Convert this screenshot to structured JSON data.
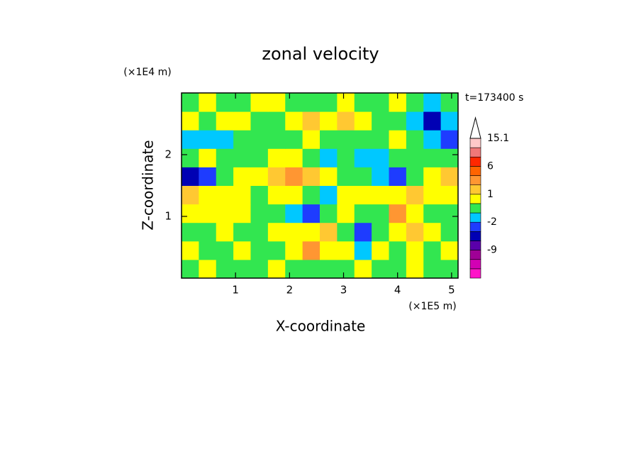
{
  "chart_data": {
    "type": "contour",
    "title": "zonal velocity",
    "xlabel": "X-coordinate",
    "ylabel": "Z-coordinate",
    "xunit": "(×1E5 m)",
    "yunit": "(×1E4 m)",
    "time_label": "t=173400 s",
    "xlim": [
      0,
      5.12
    ],
    "ylim": [
      0,
      3
    ],
    "xticks": [
      1,
      2,
      3,
      4,
      5
    ],
    "yticks": [
      1,
      2
    ],
    "x": [
      0.16,
      0.48,
      0.8,
      1.12,
      1.44,
      1.76,
      2.08,
      2.4,
      2.72,
      3.04,
      3.36,
      3.68,
      4.0,
      4.32,
      4.64,
      4.96
    ],
    "y": [
      0.15,
      0.45,
      0.75,
      1.05,
      1.35,
      1.65,
      1.95,
      2.25,
      2.55,
      2.85
    ],
    "values": [
      [
        -0.5,
        0.5,
        -0.5,
        -0.5,
        -0.5,
        0.5,
        -0.5,
        -0.5,
        -0.5,
        -0.5,
        0.5,
        -0.5,
        -0.5,
        0.5,
        -0.5,
        -0.5
      ],
      [
        0.5,
        -0.5,
        -0.5,
        0.5,
        -0.5,
        -0.5,
        0.5,
        3,
        0.5,
        0.5,
        -1.5,
        0.5,
        -0.5,
        0.5,
        -0.5,
        0.5
      ],
      [
        -0.5,
        -0.5,
        0.5,
        -0.5,
        -0.5,
        0.5,
        0.5,
        0.5,
        1.5,
        -0.5,
        -3,
        -0.5,
        0.5,
        1.5,
        0.5,
        -0.5
      ],
      [
        0.5,
        0.5,
        0.5,
        0.5,
        -0.5,
        -0.5,
        -1.5,
        -3,
        -0.5,
        0.5,
        -0.5,
        -0.5,
        3,
        0.5,
        -0.5,
        -0.5
      ],
      [
        1.5,
        0.5,
        0.5,
        0.5,
        -0.5,
        0.5,
        0.5,
        -0.5,
        -1.5,
        0.5,
        0.5,
        0.5,
        0.5,
        1.5,
        0.5,
        0.5
      ],
      [
        -5,
        -3,
        -0.5,
        0.5,
        0.5,
        1.5,
        3,
        1.5,
        0.5,
        -0.5,
        -0.5,
        -1.5,
        -3,
        -0.5,
        0.5,
        1.5
      ],
      [
        -0.5,
        0.5,
        -0.5,
        -0.5,
        -0.5,
        0.5,
        0.5,
        -0.5,
        -1.5,
        -0.5,
        -1.5,
        -1.5,
        -0.5,
        -0.5,
        -0.5,
        -0.5
      ],
      [
        -1.5,
        -1.5,
        -1.5,
        -0.5,
        -0.5,
        -0.5,
        -0.5,
        0.5,
        -0.5,
        -0.5,
        -0.5,
        -0.5,
        0.5,
        -0.5,
        -1.5,
        -3
      ],
      [
        0.5,
        -0.5,
        0.5,
        0.5,
        -0.5,
        -0.5,
        0.5,
        1.5,
        0.5,
        1.5,
        0.5,
        -0.5,
        -0.5,
        -1.5,
        -5,
        -1.5
      ],
      [
        -0.5,
        0.5,
        -0.5,
        -0.5,
        0.5,
        0.5,
        -0.5,
        -0.5,
        -0.5,
        0.5,
        -0.5,
        -0.5,
        0.5,
        -0.5,
        -1.5,
        -0.5
      ]
    ],
    "colorbar": {
      "levels": [
        -18,
        -15,
        -12,
        -9,
        -6,
        -4,
        -2,
        -1,
        0,
        1,
        2,
        4,
        6,
        9,
        12,
        15.1
      ],
      "colors": [
        "#ff14c8",
        "#d200b4",
        "#a00096",
        "#5a00aa",
        "#0000b4",
        "#1e3cff",
        "#00c8ff",
        "#32e650",
        "#ffff00",
        "#ffc832",
        "#ff9632",
        "#ff6400",
        "#ff2800",
        "#f07878",
        "#ffc8c8"
      ],
      "ticks": [
        15.1,
        6,
        1,
        -2,
        -9
      ]
    }
  }
}
